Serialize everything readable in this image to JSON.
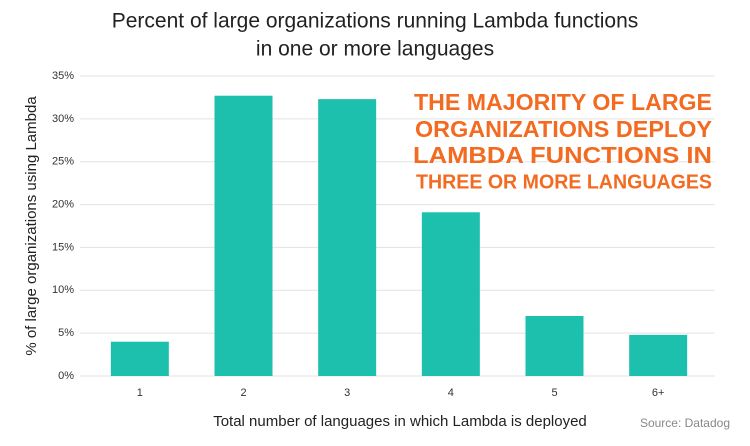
{
  "chart_data": {
    "type": "bar",
    "title": [
      "Percent of large organizations running Lambda functions",
      "in one or more languages"
    ],
    "categories": [
      "1",
      "2",
      "3",
      "4",
      "5",
      "6+"
    ],
    "values": [
      4.0,
      32.7,
      32.3,
      19.1,
      7.0,
      4.8
    ],
    "color": "#1dbfad",
    "ylim": [
      0,
      35
    ],
    "yticks": [
      {
        "value": 0,
        "label": "0%"
      },
      {
        "value": 5,
        "label": "5%"
      },
      {
        "value": 10,
        "label": "10%"
      },
      {
        "value": 15,
        "label": "15%"
      },
      {
        "value": 20,
        "label": "20%"
      },
      {
        "value": 25,
        "label": "25%"
      },
      {
        "value": 30,
        "label": "30%"
      },
      {
        "value": 35,
        "label": "35%"
      }
    ],
    "grid": true,
    "y_label": "% of large organizations using Lambda",
    "x_label": "Total number of languages in which Lambda is deployed",
    "annotation": [
      "THE MAJORITY OF LARGE",
      "ORGANIZATIONS DEPLOY",
      "LAMBDA FUNCTIONS IN",
      "THREE OR MORE LANGUAGES"
    ],
    "annotation_color": "#f26b21",
    "source": "Source: Datadog"
  }
}
